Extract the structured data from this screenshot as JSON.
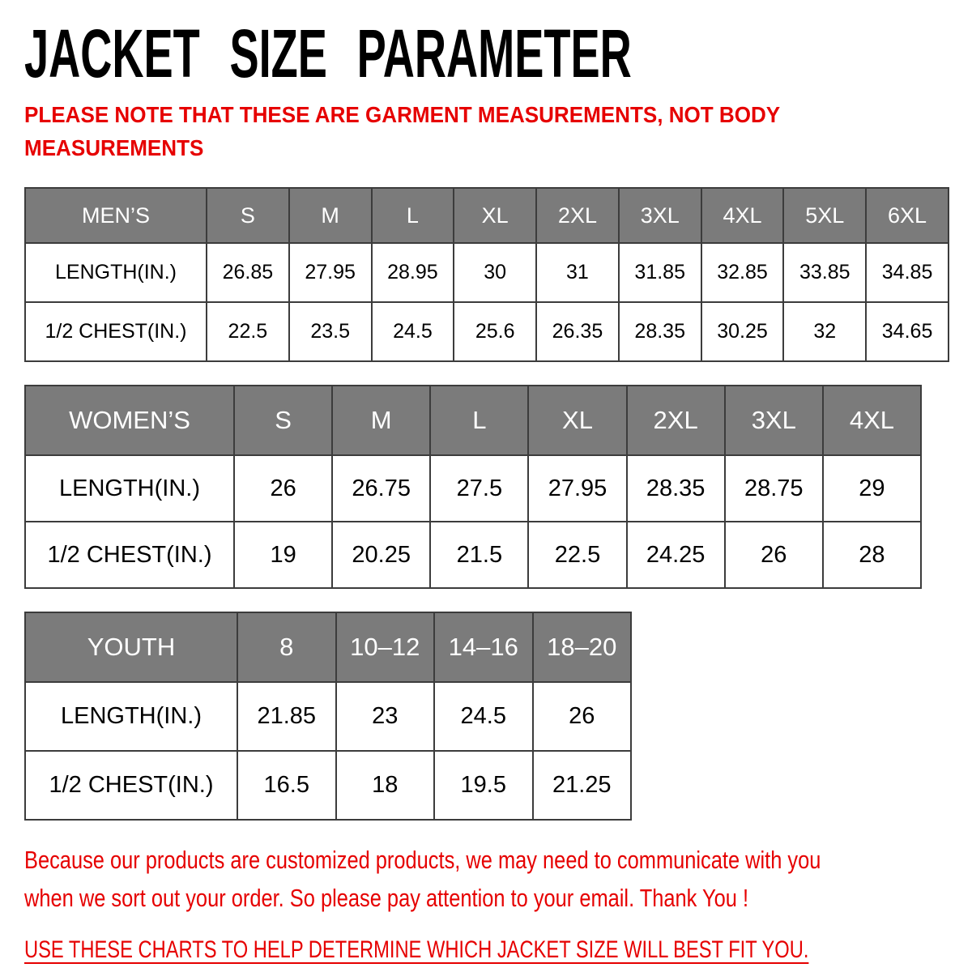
{
  "title": "JACKET SIZE PARAMETER",
  "note": {
    "lines": [
      "PLEASE NOTE THAT THESE ARE GARMENT MEASUREMENTS, NOT BODY",
      "MEASUREMENTS"
    ]
  },
  "tables": [
    {
      "key": "mens",
      "name": "MEN’S",
      "columns": [
        "S",
        "M",
        "L",
        "XL",
        "2XL",
        "3XL",
        "4XL",
        "5XL",
        "6XL"
      ],
      "rows": [
        {
          "label": "LENGTH(IN.)",
          "values": [
            "26.85",
            "27.95",
            "28.95",
            "30",
            "31",
            "31.85",
            "32.85",
            "33.85",
            "34.85"
          ]
        },
        {
          "label": "1/2 CHEST(IN.)",
          "values": [
            "22.5",
            "23.5",
            "24.5",
            "25.6",
            "26.35",
            "28.35",
            "30.25",
            "32",
            "34.65"
          ]
        }
      ]
    },
    {
      "key": "womens",
      "name": "WOMEN’S",
      "columns": [
        "S",
        "M",
        "L",
        "XL",
        "2XL",
        "3XL",
        "4XL"
      ],
      "rows": [
        {
          "label": "LENGTH(IN.)",
          "values": [
            "26",
            "26.75",
            "27.5",
            "27.95",
            "28.35",
            "28.75",
            "29"
          ]
        },
        {
          "label": "1/2 CHEST(IN.)",
          "values": [
            "19",
            "20.25",
            "21.5",
            "22.5",
            "24.25",
            "26",
            "28"
          ]
        }
      ]
    },
    {
      "key": "youth",
      "name": "YOUTH",
      "columns": [
        "8",
        "10–12",
        "14–16",
        "18–20"
      ],
      "rows": [
        {
          "label": "LENGTH(IN.)",
          "values": [
            "21.85",
            "23",
            "24.5",
            "26"
          ]
        },
        {
          "label": "1/2 CHEST(IN.)",
          "values": [
            "16.5",
            "18",
            "19.5",
            "21.25"
          ]
        }
      ]
    }
  ],
  "footer": {
    "paragraph_lines": [
      "Because our products are customized products, we may need to communicate with you",
      "when we sort out your order. So please pay attention to your email. Thank You !"
    ],
    "advice": "USE THESE CHARTS TO HELP DETERMINE WHICH JACKET SIZE WILL BEST FIT YOU."
  },
  "colors": {
    "accent_red": "#e60000",
    "header_gray": "#7b7b7b",
    "grid_border": "#3c3c3c"
  }
}
